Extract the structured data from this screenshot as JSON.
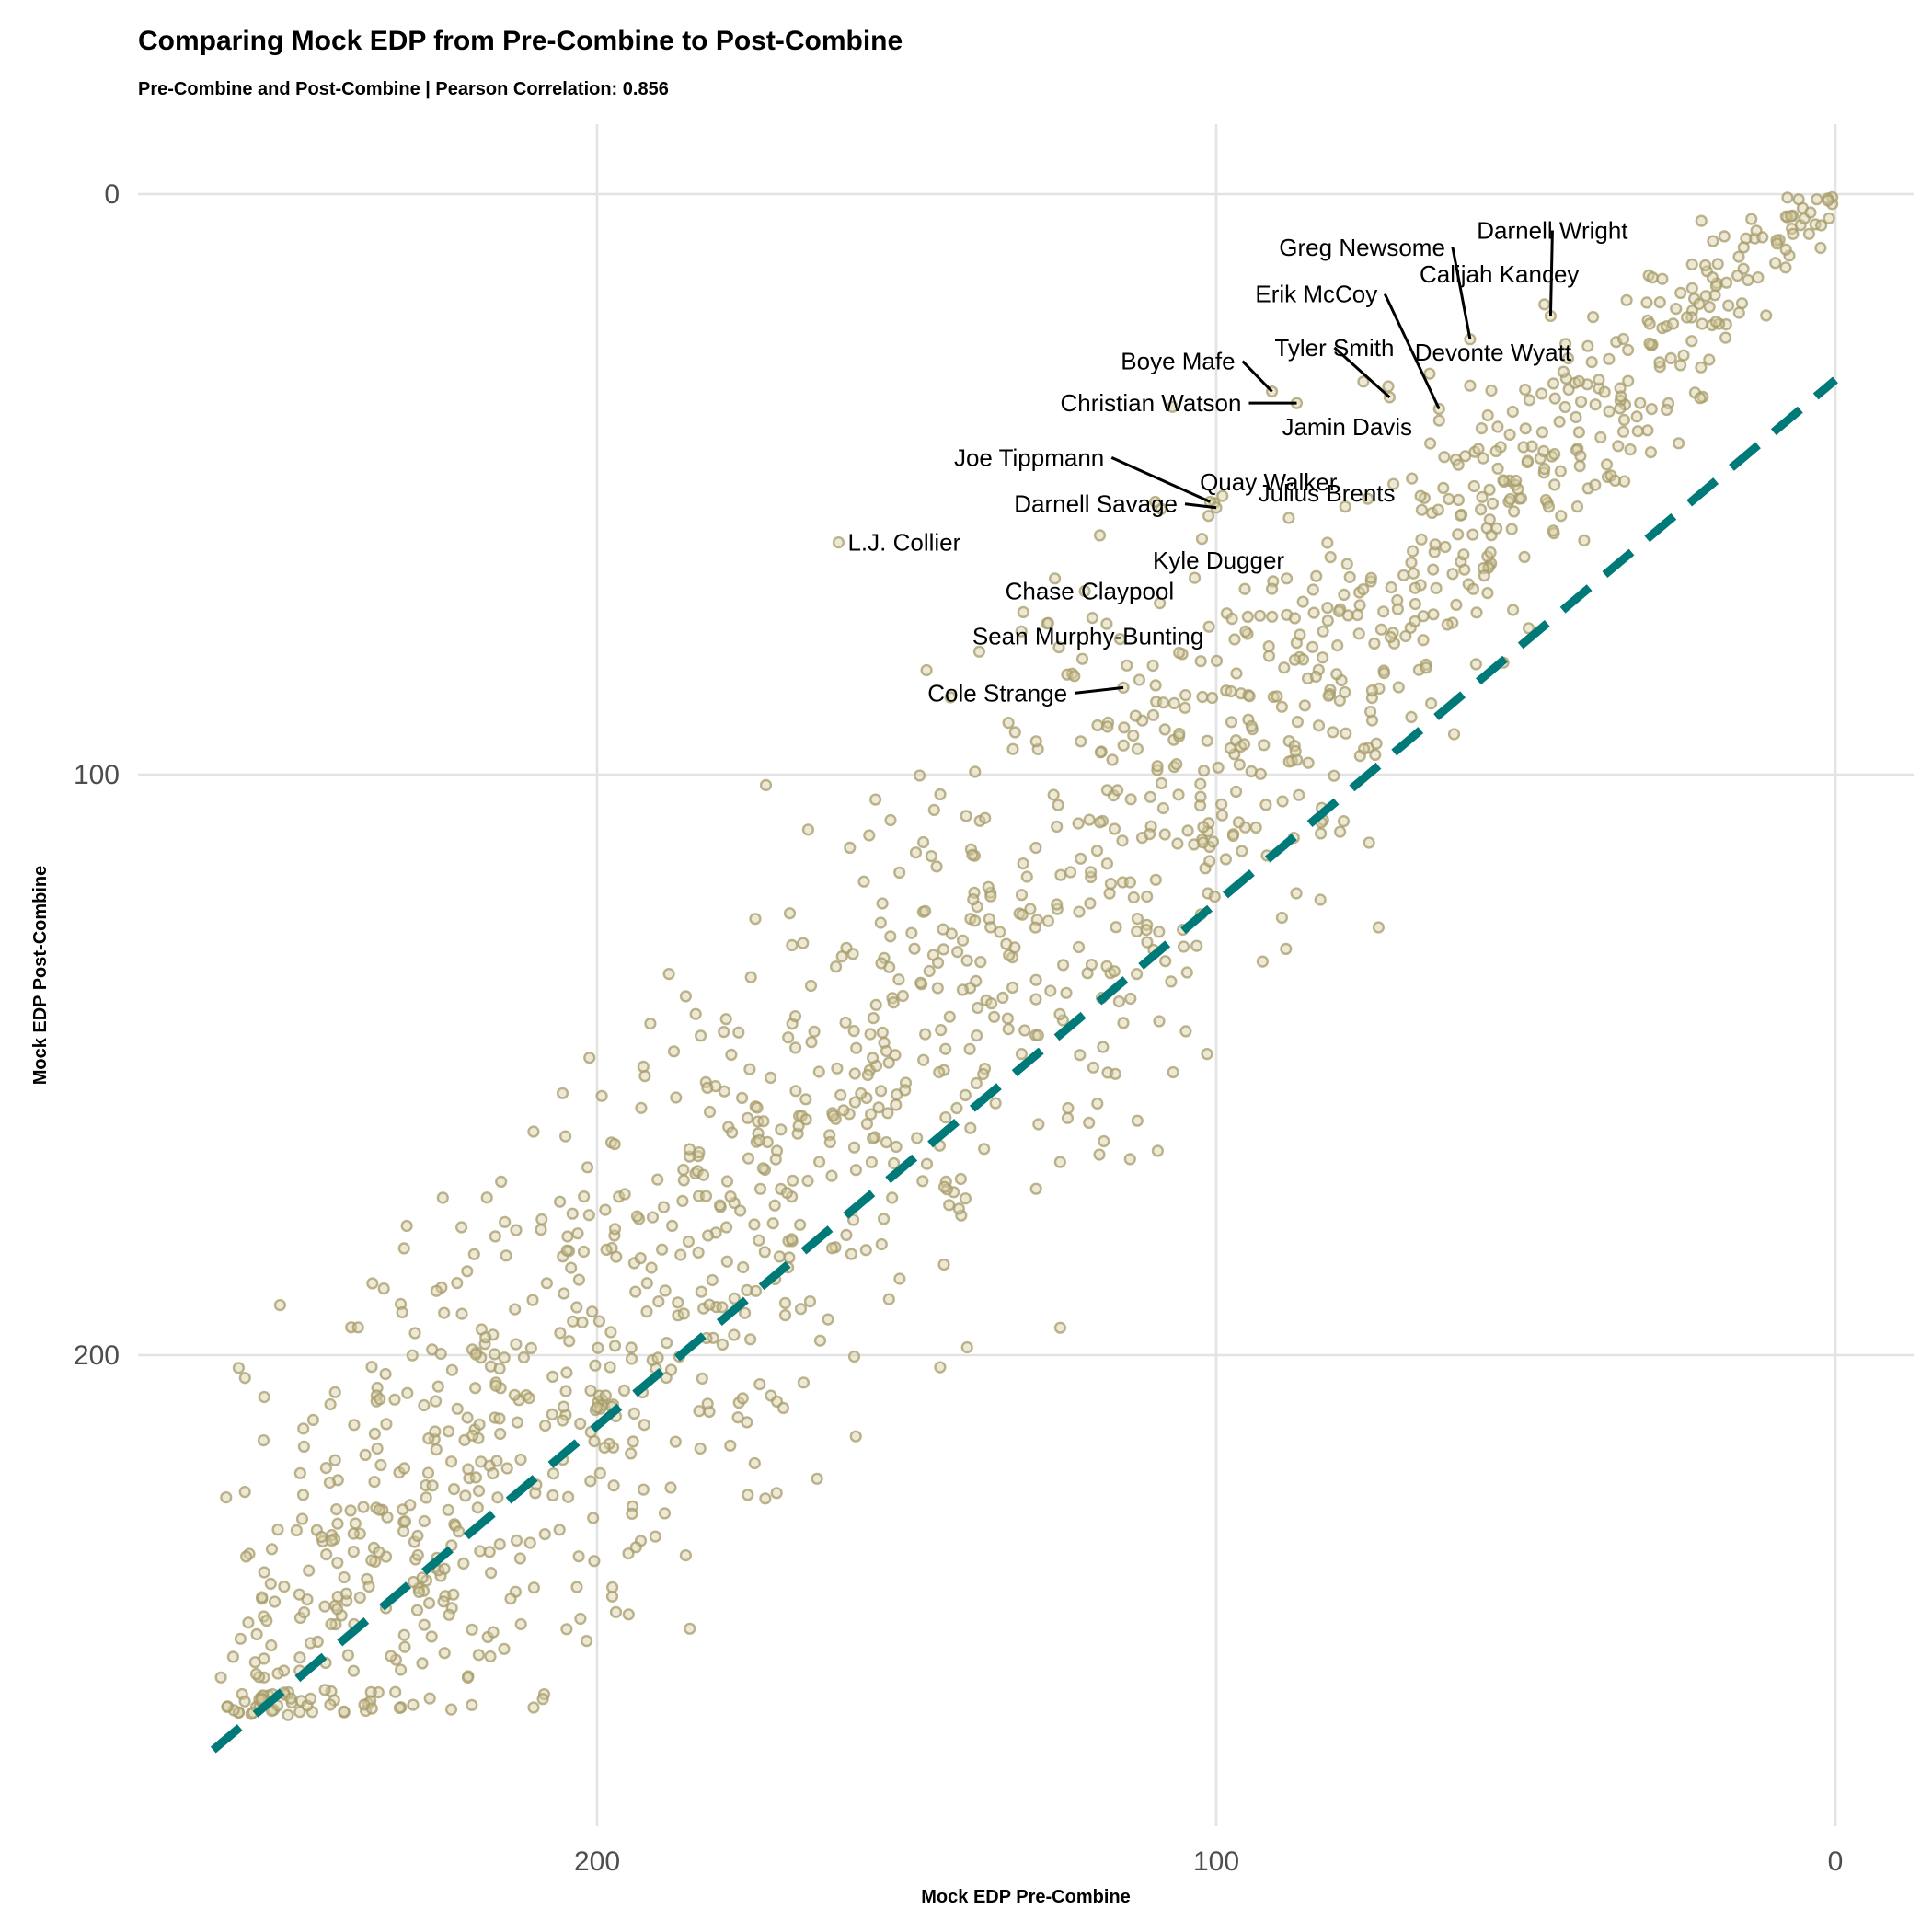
{
  "chart_data": {
    "type": "scatter",
    "title": "Comparing Mock EDP from Pre-Combine to Post-Combine",
    "subtitle": "Pre-Combine and Post-Combine | Pearson Correlation: 0.856",
    "xlabel": "Mock EDP Pre-Combine",
    "ylabel": "Mock EDP Post-Combine",
    "x_reversed": true,
    "y_reversed": true,
    "xlim": [
      262,
      -12
    ],
    "ylim": [
      -12,
      275
    ],
    "x_ticks": [
      200,
      100,
      0
    ],
    "y_ticks": [
      0,
      100,
      200
    ],
    "grid": true,
    "reference_line": {
      "style": "dashed",
      "color": "#007a78",
      "x": [
        262,
        0
      ],
      "y": [
        268,
        32
      ]
    },
    "marker_color": "#c8bb84",
    "highlighted": [
      {
        "name": "Greg Newsome",
        "x": 59,
        "y": 25
      },
      {
        "name": "Darnell Wright",
        "x": 46,
        "y": 21
      },
      {
        "name": "Erik McCoy",
        "x": 64,
        "y": 37
      },
      {
        "name": "Calijah Kancey",
        "x": 47,
        "y": 19
      },
      {
        "name": "Boye Mafe",
        "x": 91,
        "y": 34
      },
      {
        "name": "Tyler Smith",
        "x": 72,
        "y": 35
      },
      {
        "name": "Devonte Wyatt",
        "x": 59,
        "y": 33
      },
      {
        "name": "Christian Watson",
        "x": 87,
        "y": 36
      },
      {
        "name": "Jamin Davis",
        "x": 64,
        "y": 39
      },
      {
        "name": "Joe Tippmann",
        "x": 101,
        "y": 53
      },
      {
        "name": "Quay Walker",
        "x": 99,
        "y": 52
      },
      {
        "name": "Darnell Savage",
        "x": 100,
        "y": 54
      },
      {
        "name": "Julius Brents",
        "x": 67,
        "y": 52
      },
      {
        "name": "L.J. Collier",
        "x": 161,
        "y": 60
      },
      {
        "name": "Kyle Dugger",
        "x": 91,
        "y": 68
      },
      {
        "name": "Chase Claypool",
        "x": 120,
        "y": 73
      },
      {
        "name": "Sean Murphy-Bunting",
        "x": 106,
        "y": 79
      },
      {
        "name": "Cole Strange",
        "x": 115,
        "y": 85
      }
    ],
    "n_points": 1400,
    "correlation": 0.856
  }
}
